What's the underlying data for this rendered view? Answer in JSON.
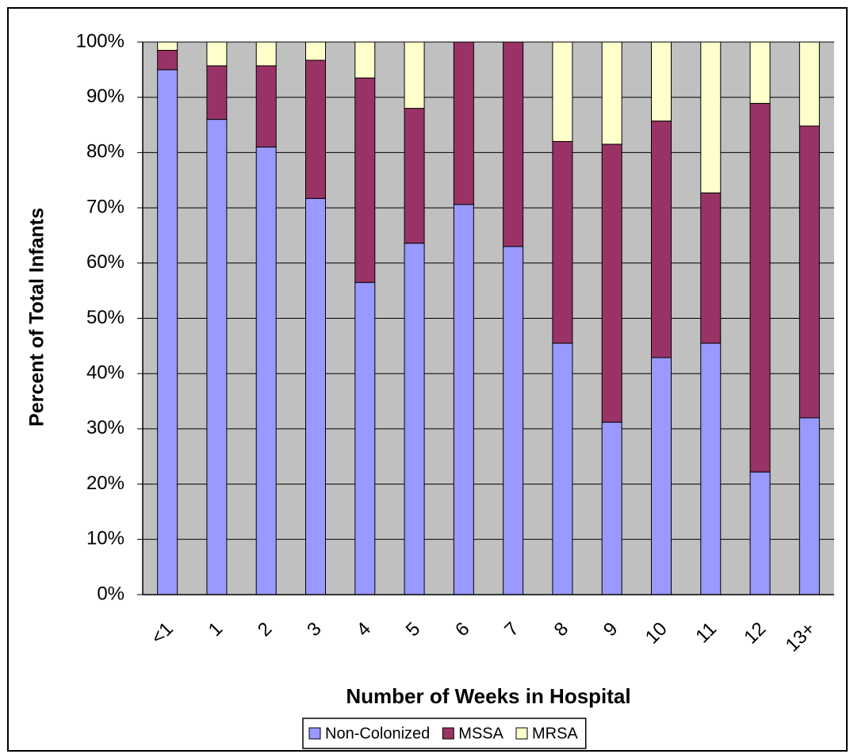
{
  "chart_data": {
    "type": "stacked_bar",
    "xlabel": "Number of Weeks in Hospital",
    "ylabel": "Percent of Total Infants",
    "categories": [
      "<1",
      "1",
      "2",
      "3",
      "4",
      "5",
      "6",
      "7",
      "8",
      "9",
      "10",
      "11",
      "12",
      "13+"
    ],
    "series": [
      {
        "name": "Non-Colonized",
        "color": "#9999ff",
        "values": [
          95,
          86,
          81,
          71.7,
          56.5,
          63.6,
          70.6,
          63,
          45.5,
          31.2,
          42.9,
          45.5,
          22.2,
          32
        ]
      },
      {
        "name": "MSSA",
        "color": "#993366",
        "values": [
          3.5,
          9.7,
          14.7,
          25,
          37,
          24.4,
          29.4,
          37,
          36.5,
          50.3,
          42.8,
          27.2,
          66.7,
          52.8
        ]
      },
      {
        "name": "MRSA",
        "color": "#ffffcc",
        "values": [
          1.5,
          4.3,
          4.3,
          3.3,
          6.5,
          12,
          0,
          0,
          18,
          18.5,
          14.3,
          27.3,
          11.1,
          15.2
        ]
      }
    ],
    "ylim": [
      0,
      100
    ],
    "yticks": [
      {
        "value": 0,
        "label": "0%"
      },
      {
        "value": 10,
        "label": "10%"
      },
      {
        "value": 20,
        "label": "20%"
      },
      {
        "value": 30,
        "label": "30%"
      },
      {
        "value": 40,
        "label": "40%"
      },
      {
        "value": 50,
        "label": "50%"
      },
      {
        "value": 60,
        "label": "60%"
      },
      {
        "value": 70,
        "label": "70%"
      },
      {
        "value": 80,
        "label": "80%"
      },
      {
        "value": 90,
        "label": "90%"
      },
      {
        "value": 100,
        "label": "100%"
      }
    ],
    "grid": true,
    "legend": "bottom"
  }
}
